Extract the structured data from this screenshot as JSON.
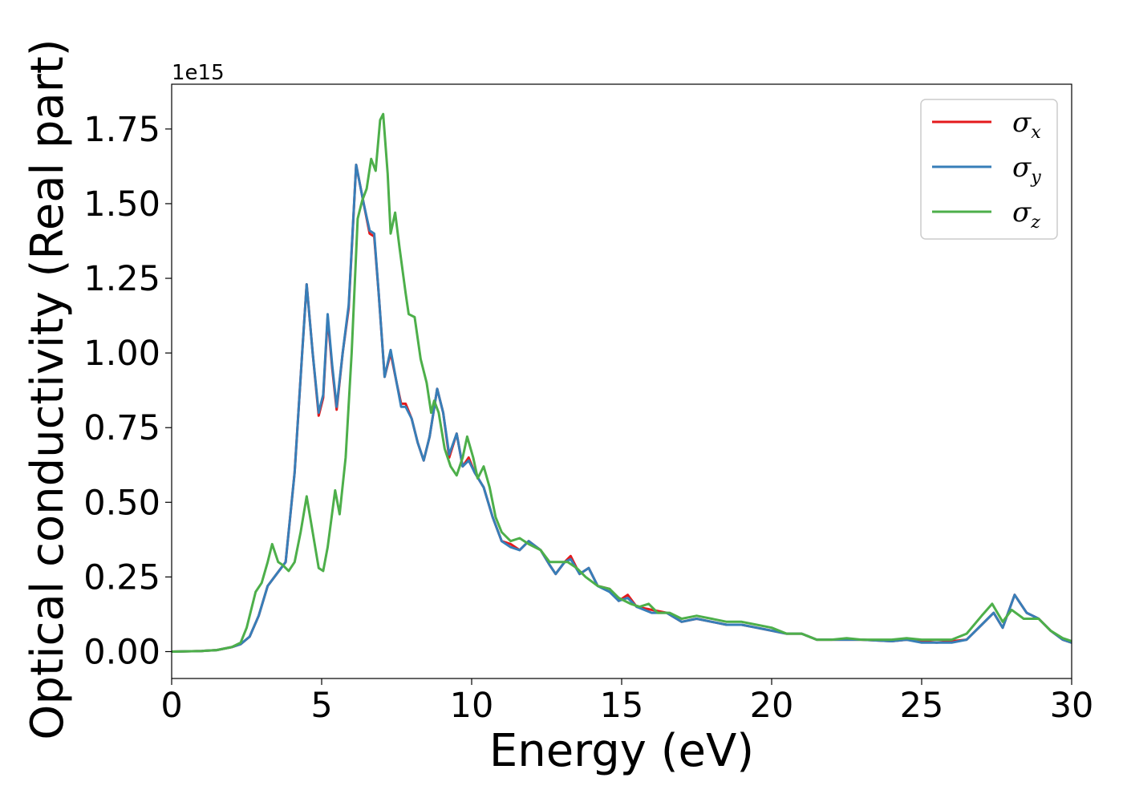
{
  "chart_data": {
    "type": "line",
    "xlabel": "Energy (eV)",
    "ylabel": "Optical conductivity (Real part)",
    "y_offset_text": "1e15",
    "xlim": [
      0,
      30
    ],
    "ylim": [
      -0.09,
      1.9
    ],
    "x_ticks": [
      0,
      5,
      10,
      15,
      20,
      25,
      30
    ],
    "x_tick_labels": [
      "0",
      "5",
      "10",
      "15",
      "20",
      "25",
      "30"
    ],
    "y_ticks": [
      0.0,
      0.25,
      0.5,
      0.75,
      1.0,
      1.25,
      1.5,
      1.75
    ],
    "y_tick_labels": [
      "0.00",
      "0.25",
      "0.50",
      "0.75",
      "1.00",
      "1.25",
      "1.50",
      "1.75"
    ],
    "grid": false,
    "legend_position": "top-right",
    "series": [
      {
        "name": "σ",
        "subscript": "x",
        "color": "#e41a1c",
        "points": [
          [
            0,
            0
          ],
          [
            1,
            0.002
          ],
          [
            1.5,
            0.005
          ],
          [
            2,
            0.015
          ],
          [
            2.3,
            0.025
          ],
          [
            2.6,
            0.05
          ],
          [
            2.9,
            0.12
          ],
          [
            3.2,
            0.22
          ],
          [
            3.5,
            0.26
          ],
          [
            3.8,
            0.3
          ],
          [
            4.1,
            0.6
          ],
          [
            4.35,
            1.0
          ],
          [
            4.5,
            1.23
          ],
          [
            4.7,
            1.0
          ],
          [
            4.9,
            0.79
          ],
          [
            5.05,
            0.85
          ],
          [
            5.2,
            1.12
          ],
          [
            5.35,
            0.95
          ],
          [
            5.5,
            0.81
          ],
          [
            5.7,
            1.0
          ],
          [
            5.9,
            1.15
          ],
          [
            6.15,
            1.63
          ],
          [
            6.4,
            1.5
          ],
          [
            6.6,
            1.4
          ],
          [
            6.75,
            1.39
          ],
          [
            6.9,
            1.2
          ],
          [
            7.1,
            0.92
          ],
          [
            7.3,
            1.0
          ],
          [
            7.5,
            0.9
          ],
          [
            7.65,
            0.83
          ],
          [
            7.8,
            0.83
          ],
          [
            8.0,
            0.78
          ],
          [
            8.2,
            0.7
          ],
          [
            8.4,
            0.64
          ],
          [
            8.6,
            0.72
          ],
          [
            8.85,
            0.88
          ],
          [
            9.05,
            0.8
          ],
          [
            9.25,
            0.65
          ],
          [
            9.5,
            0.73
          ],
          [
            9.7,
            0.62
          ],
          [
            9.9,
            0.65
          ],
          [
            10.1,
            0.6
          ],
          [
            10.4,
            0.55
          ],
          [
            10.7,
            0.45
          ],
          [
            11.0,
            0.37
          ],
          [
            11.3,
            0.36
          ],
          [
            11.6,
            0.34
          ],
          [
            11.9,
            0.37
          ],
          [
            12.3,
            0.34
          ],
          [
            12.6,
            0.29
          ],
          [
            12.8,
            0.26
          ],
          [
            13.1,
            0.3
          ],
          [
            13.3,
            0.32
          ],
          [
            13.6,
            0.26
          ],
          [
            13.9,
            0.28
          ],
          [
            14.2,
            0.22
          ],
          [
            14.6,
            0.21
          ],
          [
            14.9,
            0.17
          ],
          [
            15.2,
            0.19
          ],
          [
            15.5,
            0.15
          ],
          [
            16.0,
            0.14
          ],
          [
            16.5,
            0.13
          ],
          [
            17.0,
            0.1
          ],
          [
            17.5,
            0.11
          ],
          [
            18.0,
            0.1
          ],
          [
            18.5,
            0.09
          ],
          [
            19.0,
            0.09
          ],
          [
            19.5,
            0.08
          ],
          [
            20.0,
            0.07
          ],
          [
            20.5,
            0.06
          ],
          [
            21.0,
            0.06
          ],
          [
            21.5,
            0.04
          ],
          [
            22.0,
            0.04
          ],
          [
            22.5,
            0.04
          ],
          [
            23.0,
            0.04
          ],
          [
            24.0,
            0.035
          ],
          [
            24.5,
            0.04
          ],
          [
            25.0,
            0.035
          ],
          [
            25.5,
            0.03
          ],
          [
            26.0,
            0.035
          ],
          [
            26.5,
            0.04
          ],
          [
            27.0,
            0.09
          ],
          [
            27.4,
            0.13
          ],
          [
            27.7,
            0.08
          ],
          [
            28.1,
            0.19
          ],
          [
            28.5,
            0.13
          ],
          [
            28.9,
            0.11
          ],
          [
            29.3,
            0.07
          ],
          [
            29.7,
            0.04
          ],
          [
            30.0,
            0.03
          ]
        ]
      },
      {
        "name": "σ",
        "subscript": "y",
        "color": "#377eb8",
        "points": [
          [
            0,
            0
          ],
          [
            1,
            0.002
          ],
          [
            1.5,
            0.005
          ],
          [
            2,
            0.015
          ],
          [
            2.3,
            0.025
          ],
          [
            2.6,
            0.05
          ],
          [
            2.9,
            0.12
          ],
          [
            3.2,
            0.22
          ],
          [
            3.5,
            0.26
          ],
          [
            3.8,
            0.3
          ],
          [
            4.1,
            0.6
          ],
          [
            4.35,
            1.0
          ],
          [
            4.5,
            1.23
          ],
          [
            4.7,
            1.0
          ],
          [
            4.9,
            0.8
          ],
          [
            5.05,
            0.86
          ],
          [
            5.2,
            1.13
          ],
          [
            5.35,
            0.96
          ],
          [
            5.5,
            0.82
          ],
          [
            5.7,
            1.0
          ],
          [
            5.9,
            1.16
          ],
          [
            6.15,
            1.63
          ],
          [
            6.4,
            1.5
          ],
          [
            6.6,
            1.41
          ],
          [
            6.75,
            1.4
          ],
          [
            6.9,
            1.2
          ],
          [
            7.1,
            0.92
          ],
          [
            7.3,
            1.01
          ],
          [
            7.5,
            0.9
          ],
          [
            7.65,
            0.82
          ],
          [
            7.8,
            0.82
          ],
          [
            8.0,
            0.78
          ],
          [
            8.2,
            0.7
          ],
          [
            8.4,
            0.64
          ],
          [
            8.6,
            0.72
          ],
          [
            8.85,
            0.88
          ],
          [
            9.05,
            0.8
          ],
          [
            9.25,
            0.66
          ],
          [
            9.5,
            0.73
          ],
          [
            9.7,
            0.62
          ],
          [
            9.9,
            0.64
          ],
          [
            10.1,
            0.6
          ],
          [
            10.4,
            0.55
          ],
          [
            10.7,
            0.45
          ],
          [
            11.0,
            0.37
          ],
          [
            11.3,
            0.35
          ],
          [
            11.6,
            0.34
          ],
          [
            11.9,
            0.37
          ],
          [
            12.3,
            0.34
          ],
          [
            12.6,
            0.29
          ],
          [
            12.8,
            0.26
          ],
          [
            13.1,
            0.3
          ],
          [
            13.3,
            0.31
          ],
          [
            13.6,
            0.26
          ],
          [
            13.9,
            0.28
          ],
          [
            14.2,
            0.22
          ],
          [
            14.6,
            0.2
          ],
          [
            14.9,
            0.17
          ],
          [
            15.2,
            0.18
          ],
          [
            15.5,
            0.15
          ],
          [
            16.0,
            0.13
          ],
          [
            16.5,
            0.13
          ],
          [
            17.0,
            0.1
          ],
          [
            17.5,
            0.11
          ],
          [
            18.0,
            0.1
          ],
          [
            18.5,
            0.09
          ],
          [
            19.0,
            0.09
          ],
          [
            19.5,
            0.08
          ],
          [
            20.0,
            0.07
          ],
          [
            20.5,
            0.06
          ],
          [
            21.0,
            0.06
          ],
          [
            21.5,
            0.04
          ],
          [
            22.0,
            0.04
          ],
          [
            22.5,
            0.04
          ],
          [
            23.0,
            0.04
          ],
          [
            24.0,
            0.035
          ],
          [
            24.5,
            0.04
          ],
          [
            25.0,
            0.03
          ],
          [
            25.5,
            0.03
          ],
          [
            26.0,
            0.03
          ],
          [
            26.5,
            0.04
          ],
          [
            27.0,
            0.09
          ],
          [
            27.4,
            0.13
          ],
          [
            27.7,
            0.08
          ],
          [
            28.1,
            0.19
          ],
          [
            28.5,
            0.13
          ],
          [
            28.9,
            0.11
          ],
          [
            29.3,
            0.07
          ],
          [
            29.7,
            0.04
          ],
          [
            30.0,
            0.03
          ]
        ]
      },
      {
        "name": "σ",
        "subscript": "z",
        "color": "#4daf4a",
        "points": [
          [
            0,
            0
          ],
          [
            1,
            0.002
          ],
          [
            1.5,
            0.005
          ],
          [
            2,
            0.015
          ],
          [
            2.3,
            0.03
          ],
          [
            2.5,
            0.08
          ],
          [
            2.8,
            0.2
          ],
          [
            3.0,
            0.23
          ],
          [
            3.2,
            0.3
          ],
          [
            3.35,
            0.36
          ],
          [
            3.55,
            0.3
          ],
          [
            3.7,
            0.29
          ],
          [
            3.9,
            0.27
          ],
          [
            4.1,
            0.3
          ],
          [
            4.3,
            0.4
          ],
          [
            4.5,
            0.52
          ],
          [
            4.7,
            0.4
          ],
          [
            4.9,
            0.28
          ],
          [
            5.05,
            0.27
          ],
          [
            5.2,
            0.35
          ],
          [
            5.45,
            0.54
          ],
          [
            5.6,
            0.46
          ],
          [
            5.8,
            0.65
          ],
          [
            6.0,
            1.0
          ],
          [
            6.2,
            1.45
          ],
          [
            6.35,
            1.51
          ],
          [
            6.5,
            1.55
          ],
          [
            6.65,
            1.65
          ],
          [
            6.8,
            1.61
          ],
          [
            6.95,
            1.78
          ],
          [
            7.05,
            1.8
          ],
          [
            7.2,
            1.6
          ],
          [
            7.3,
            1.4
          ],
          [
            7.45,
            1.47
          ],
          [
            7.6,
            1.35
          ],
          [
            7.8,
            1.2
          ],
          [
            7.9,
            1.13
          ],
          [
            8.1,
            1.12
          ],
          [
            8.3,
            0.98
          ],
          [
            8.5,
            0.9
          ],
          [
            8.65,
            0.8
          ],
          [
            8.75,
            0.84
          ],
          [
            8.9,
            0.8
          ],
          [
            9.1,
            0.68
          ],
          [
            9.3,
            0.62
          ],
          [
            9.5,
            0.59
          ],
          [
            9.7,
            0.65
          ],
          [
            9.85,
            0.72
          ],
          [
            10.05,
            0.65
          ],
          [
            10.2,
            0.58
          ],
          [
            10.4,
            0.62
          ],
          [
            10.6,
            0.55
          ],
          [
            10.8,
            0.45
          ],
          [
            11.0,
            0.4
          ],
          [
            11.3,
            0.37
          ],
          [
            11.6,
            0.38
          ],
          [
            11.9,
            0.36
          ],
          [
            12.3,
            0.34
          ],
          [
            12.6,
            0.3
          ],
          [
            12.9,
            0.3
          ],
          [
            13.2,
            0.3
          ],
          [
            13.5,
            0.28
          ],
          [
            13.8,
            0.25
          ],
          [
            14.2,
            0.22
          ],
          [
            14.6,
            0.21
          ],
          [
            14.9,
            0.18
          ],
          [
            15.3,
            0.16
          ],
          [
            15.6,
            0.15
          ],
          [
            15.9,
            0.16
          ],
          [
            16.2,
            0.13
          ],
          [
            16.6,
            0.13
          ],
          [
            17.0,
            0.11
          ],
          [
            17.5,
            0.12
          ],
          [
            18.0,
            0.11
          ],
          [
            18.5,
            0.1
          ],
          [
            19.0,
            0.1
          ],
          [
            19.5,
            0.09
          ],
          [
            20.0,
            0.08
          ],
          [
            20.5,
            0.06
          ],
          [
            21.0,
            0.06
          ],
          [
            21.5,
            0.04
          ],
          [
            22.0,
            0.04
          ],
          [
            22.5,
            0.045
          ],
          [
            23.0,
            0.04
          ],
          [
            24.0,
            0.04
          ],
          [
            24.5,
            0.045
          ],
          [
            25.0,
            0.04
          ],
          [
            25.5,
            0.04
          ],
          [
            26.0,
            0.04
          ],
          [
            26.5,
            0.06
          ],
          [
            27.0,
            0.12
          ],
          [
            27.35,
            0.16
          ],
          [
            27.7,
            0.1
          ],
          [
            28.0,
            0.14
          ],
          [
            28.4,
            0.11
          ],
          [
            28.9,
            0.11
          ],
          [
            29.3,
            0.07
          ],
          [
            29.7,
            0.045
          ],
          [
            30.0,
            0.035
          ]
        ]
      }
    ]
  }
}
